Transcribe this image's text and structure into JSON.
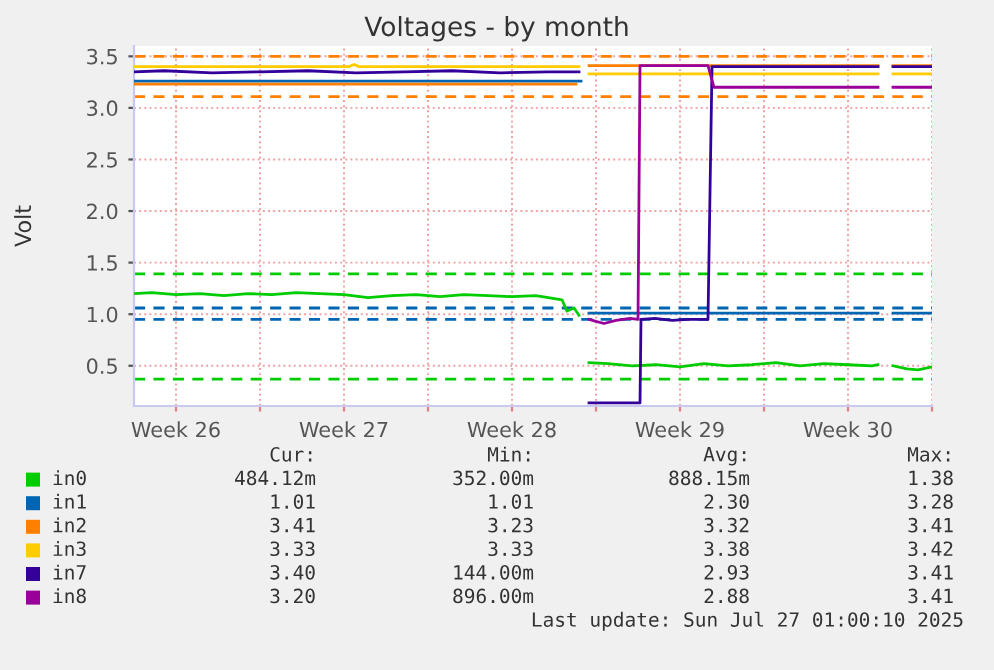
{
  "chart_data": {
    "type": "line",
    "title": "Voltages - by month",
    "ylabel": "Volt",
    "xlim": [
      "2025-06-24T18:00",
      "2025-07-28T00:00"
    ],
    "ylim": [
      0.11,
      3.6
    ],
    "xticks": [
      {
        "value": "2025-06-26T12:00",
        "label": "Week 26"
      },
      {
        "value": "2025-06-30T00:00",
        "label": null
      },
      {
        "value": "2025-07-03T12:00",
        "label": "Week 27"
      },
      {
        "value": "2025-07-07T00:00",
        "label": null
      },
      {
        "value": "2025-07-10T12:00",
        "label": "Week 28"
      },
      {
        "value": "2025-07-14T00:00",
        "label": null
      },
      {
        "value": "2025-07-17T12:00",
        "label": "Week 29"
      },
      {
        "value": "2025-07-21T00:00",
        "label": null
      },
      {
        "value": "2025-07-24T12:00",
        "label": "Week 30"
      },
      {
        "value": "2025-07-28T00:00",
        "label": null
      }
    ],
    "yticks": [
      0.5,
      {
        "value": 1,
        "label": "1.0"
      },
      1.5,
      {
        "value": 2,
        "label": "2.0"
      },
      2.5,
      {
        "value": 3,
        "label": "3.0"
      },
      3.5
    ],
    "grid": true,
    "legend": "bottom",
    "marker": "none",
    "line_style": "solid",
    "series": [
      {
        "name": "in0",
        "color": "#00cc00",
        "x": [
          "2025-06-24T18:00",
          "2025-06-25T12:00",
          "2025-06-26T12:00",
          "2025-06-27T12:00",
          "2025-06-28T12:00",
          "2025-06-29T12:00",
          "2025-06-30T12:00",
          "2025-07-01T12:00",
          "2025-07-02T12:00",
          "2025-07-03T12:00",
          "2025-07-04T12:00",
          "2025-07-05T12:00",
          "2025-07-06T12:00",
          "2025-07-07T12:00",
          "2025-07-08T12:00",
          "2025-07-09T12:00",
          "2025-07-10T12:00",
          "2025-07-11T12:00",
          "2025-07-12T14:00",
          "2025-07-12T19:00",
          "2025-07-13T02:00",
          "2025-07-13T07:00",
          "2025-07-13T12:00",
          "2025-07-13T17:00",
          "2025-07-14T12:00",
          "2025-07-15T12:00",
          "2025-07-16T12:00",
          "2025-07-17T12:00",
          "2025-07-18T12:00",
          "2025-07-19T12:00",
          "2025-07-20T12:00",
          "2025-07-21T12:00",
          "2025-07-22T12:00",
          "2025-07-23T12:00",
          "2025-07-24T12:00",
          "2025-07-25T12:00",
          "2025-07-25T18:00",
          "2025-07-26T01:00",
          "2025-07-26T09:00",
          "2025-07-26T23:00",
          "2025-07-27T10:00",
          "2025-07-28T00:00"
        ],
        "values": [
          1.2,
          1.21,
          1.19,
          1.2,
          1.18,
          1.2,
          1.19,
          1.21,
          1.2,
          1.19,
          1.16,
          1.18,
          1.19,
          1.17,
          1.19,
          1.18,
          1.17,
          1.18,
          1.14,
          1.03,
          1.06,
          0.99,
          null,
          0.53,
          0.52,
          0.5,
          0.51,
          0.49,
          0.52,
          0.5,
          0.51,
          0.53,
          0.5,
          0.52,
          0.51,
          0.5,
          0.51,
          null,
          0.5,
          0.47,
          0.46,
          0.49
        ]
      },
      {
        "name": "in1",
        "color": "#0066b3",
        "x": [
          "2025-06-24T18:00",
          "2025-07-13T09:00",
          "2025-07-13T12:00",
          "2025-07-13T17:00",
          "2025-07-25T18:00",
          "2025-07-26T01:00",
          "2025-07-26T09:00",
          "2025-07-28T00:00"
        ],
        "values": [
          3.26,
          3.26,
          null,
          1.01,
          1.01,
          null,
          1.01,
          1.01
        ]
      },
      {
        "name": "in2",
        "color": "#ff8000",
        "x": [
          "2025-06-24T18:00",
          "2025-07-13T04:00",
          "2025-07-13T12:00",
          "2025-07-13T17:00",
          "2025-07-25T18:00",
          "2025-07-26T01:00",
          "2025-07-26T09:00",
          "2025-07-28T00:00"
        ],
        "values": [
          3.23,
          3.23,
          null,
          3.41,
          3.41,
          null,
          3.41,
          3.41
        ]
      },
      {
        "name": "in3",
        "color": "#ffcc00",
        "x": [
          "2025-06-24T18:00",
          "2025-07-03T17:00",
          "2025-07-03T22:00",
          "2025-07-04T03:00",
          "2025-07-13T07:00",
          "2025-07-13T12:00",
          "2025-07-13T17:00",
          "2025-07-25T18:00",
          "2025-07-26T01:00",
          "2025-07-26T09:00",
          "2025-07-28T00:00"
        ],
        "values": [
          3.4,
          3.4,
          3.42,
          3.4,
          3.4,
          null,
          3.33,
          3.33,
          null,
          3.33,
          3.33
        ]
      },
      {
        "name": "in7",
        "color": "#330099",
        "x": [
          "2025-06-24T18:00",
          "2025-06-26T00:00",
          "2025-06-28T00:00",
          "2025-06-30T00:00",
          "2025-07-02T00:00",
          "2025-07-04T00:00",
          "2025-07-06T00:00",
          "2025-07-08T00:00",
          "2025-07-10T00:00",
          "2025-07-12T00:00",
          "2025-07-13T07:00",
          "2025-07-13T12:00",
          "2025-07-13T17:00",
          "2025-07-15T20:00",
          "2025-07-15T21:00",
          "2025-07-16T11:00",
          "2025-07-17T04:00",
          "2025-07-17T20:00",
          "2025-07-18T16:00",
          "2025-07-18T20:00",
          "2025-07-25T18:00",
          "2025-07-26T01:00",
          "2025-07-26T09:00",
          "2025-07-28T00:00"
        ],
        "values": [
          3.35,
          3.36,
          3.34,
          3.35,
          3.36,
          3.34,
          3.35,
          3.36,
          3.34,
          3.35,
          3.35,
          null,
          0.14,
          0.14,
          0.95,
          0.96,
          0.94,
          0.95,
          0.95,
          3.4,
          3.4,
          null,
          3.4,
          3.4
        ]
      },
      {
        "name": "in8",
        "color": "#990099",
        "x": [
          "2025-07-13T17:00",
          "2025-07-14T00:00",
          "2025-07-14T08:00",
          "2025-07-14T20:00",
          "2025-07-15T10:00",
          "2025-07-15T18:00",
          "2025-07-15T20:00",
          "2025-07-18T16:00",
          "2025-07-18T22:00",
          "2025-07-25T18:00",
          "2025-07-26T01:00",
          "2025-07-26T09:00",
          "2025-07-28T00:00"
        ],
        "values": [
          0.95,
          0.93,
          0.91,
          0.94,
          0.96,
          0.95,
          3.41,
          3.41,
          3.2,
          3.2,
          null,
          3.2,
          3.2
        ]
      }
    ],
    "ref_lines": [
      {
        "axis": "y",
        "value": 3.5,
        "color": "#ff8000",
        "line_style": "dashed"
      },
      {
        "axis": "y",
        "value": 3.11,
        "color": "#ff8000",
        "line_style": "dashed"
      },
      {
        "axis": "y",
        "value": 1.39,
        "color": "#00cc00",
        "line_style": "dashed"
      },
      {
        "axis": "y",
        "value": 0.37,
        "color": "#00cc00",
        "line_style": "dashed"
      },
      {
        "axis": "y",
        "value": 1.06,
        "color": "#0066b3",
        "line_style": "dashed"
      },
      {
        "axis": "y",
        "value": 0.95,
        "color": "#0066b3",
        "line_style": "dashed"
      }
    ],
    "annotations": [
      "Cur:",
      "Min:",
      "Avg:",
      "Max:",
      "484.12m",
      "352.00m",
      "888.15m",
      "1.38",
      "1.01",
      "1.01",
      "2.30",
      "3.28",
      "3.41",
      "3.23",
      "3.32",
      "3.41",
      "3.33",
      "3.33",
      "3.38",
      "3.42",
      "3.40",
      "144.00m",
      "2.93",
      "3.41",
      "3.20",
      "896.00m",
      "2.88",
      "3.41",
      "Last update: Sun Jul 27 01:00:10 2025"
    ]
  }
}
